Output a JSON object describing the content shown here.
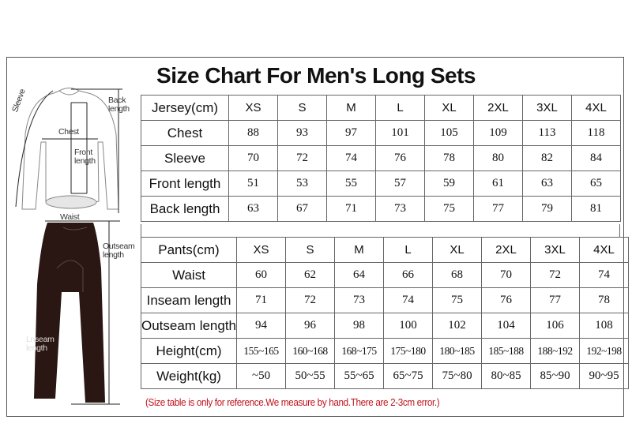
{
  "title": "Size Chart For Men's Long Sets",
  "illustration": {
    "labels": {
      "sleeve": "Sleeve",
      "chest": "Chest",
      "back_length": "Back length",
      "front_length": "Front length",
      "waist": "Waist",
      "outseam_length": "Outseam length",
      "inseam_length": "Lnseam length"
    }
  },
  "jersey_table": {
    "headers": [
      "Jersey(cm)",
      "XS",
      "S",
      "M",
      "L",
      "XL",
      "2XL",
      "3XL",
      "4XL"
    ],
    "rows": [
      {
        "label": "Chest",
        "values": [
          "88",
          "93",
          "97",
          "101",
          "105",
          "109",
          "113",
          "118"
        ]
      },
      {
        "label": "Sleeve",
        "values": [
          "70",
          "72",
          "74",
          "76",
          "78",
          "80",
          "82",
          "84"
        ]
      },
      {
        "label": "Front length",
        "values": [
          "51",
          "53",
          "55",
          "57",
          "59",
          "61",
          "63",
          "65"
        ]
      },
      {
        "label": "Back length",
        "values": [
          "63",
          "67",
          "71",
          "73",
          "75",
          "77",
          "79",
          "81"
        ]
      }
    ]
  },
  "pants_table": {
    "headers": [
      "Pants(cm)",
      "XS",
      "S",
      "M",
      "L",
      "XL",
      "2XL",
      "3XL",
      "4XL"
    ],
    "rows": [
      {
        "label": "Waist",
        "values": [
          "60",
          "62",
          "64",
          "66",
          "68",
          "70",
          "72",
          "74"
        ]
      },
      {
        "label": "Inseam length",
        "values": [
          "71",
          "72",
          "73",
          "74",
          "75",
          "76",
          "77",
          "78"
        ]
      },
      {
        "label": "Outseam length",
        "values": [
          "94",
          "96",
          "98",
          "100",
          "102",
          "104",
          "106",
          "108"
        ]
      },
      {
        "label": "Height(cm)",
        "values": [
          "155~165",
          "160~168",
          "168~175",
          "175~180",
          "180~185",
          "185~188",
          "188~192",
          "192~198"
        ]
      },
      {
        "label": "Weight(kg)",
        "values": [
          "~50",
          "50~55",
          "55~65",
          "65~75",
          "75~80",
          "80~85",
          "85~90",
          "90~95"
        ]
      }
    ]
  },
  "note": "(Size table is only for reference.We measure by hand.There are 2-3cm error.)",
  "colors": {
    "note": "#c0141c",
    "pants": "#2a1612",
    "border": "#666666"
  }
}
